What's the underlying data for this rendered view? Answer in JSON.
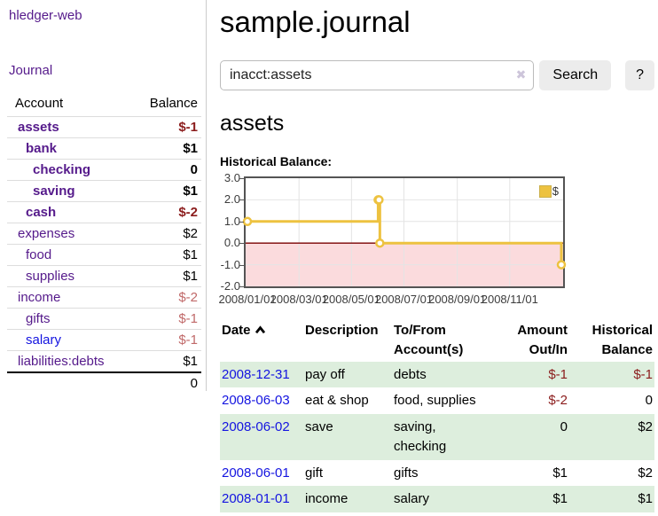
{
  "theme": {
    "link_purple": "#551a8b",
    "link_blue": "#1414e0",
    "negative_strong": "#8b1c1c",
    "negative_muted": "#c06969",
    "row_green": "#ddeedd",
    "chart_line": "#edc240"
  },
  "app": {
    "brand": "hledger-web",
    "nav_journal": "Journal"
  },
  "sidebar": {
    "header": {
      "account": "Account",
      "balance": "Balance"
    },
    "accounts": [
      {
        "name": "assets",
        "depth": 1,
        "balance": "$-1",
        "negative": true,
        "bold": true,
        "unvisited": false
      },
      {
        "name": "bank",
        "depth": 2,
        "balance": "$1",
        "negative": false,
        "bold": true,
        "unvisited": false
      },
      {
        "name": "checking",
        "depth": 3,
        "balance": "0",
        "negative": false,
        "bold": true,
        "unvisited": false
      },
      {
        "name": "saving",
        "depth": 3,
        "balance": "$1",
        "negative": false,
        "bold": true,
        "unvisited": false
      },
      {
        "name": "cash",
        "depth": 2,
        "balance": "$-2",
        "negative": true,
        "bold": true,
        "unvisited": false
      },
      {
        "name": "expenses",
        "depth": 1,
        "balance": "$2",
        "negative": false,
        "bold": false,
        "unvisited": false
      },
      {
        "name": "food",
        "depth": 2,
        "balance": "$1",
        "negative": false,
        "bold": false,
        "unvisited": false
      },
      {
        "name": "supplies",
        "depth": 2,
        "balance": "$1",
        "negative": false,
        "bold": false,
        "unvisited": false
      },
      {
        "name": "income",
        "depth": 1,
        "balance": "$-2",
        "negative": true,
        "bold": false,
        "unvisited": false
      },
      {
        "name": "gifts",
        "depth": 2,
        "balance": "$-1",
        "negative": true,
        "bold": false,
        "unvisited": false
      },
      {
        "name": "salary",
        "depth": 2,
        "balance": "$-1",
        "negative": true,
        "bold": false,
        "unvisited": true
      },
      {
        "name": "liabilities:debts",
        "depth": 1,
        "balance": "$1",
        "negative": false,
        "bold": false,
        "unvisited": false
      }
    ],
    "total": "0"
  },
  "header": {
    "title": "sample.journal"
  },
  "search": {
    "value": "inacct:assets",
    "clear_icon": "✖",
    "button": "Search",
    "help_button": "?"
  },
  "account_page": {
    "title": "assets",
    "chart_label": "Historical Balance:"
  },
  "chart_data": {
    "type": "line",
    "style": "step",
    "title": "Historical Balance",
    "legend": "$",
    "legend_position": "top-right",
    "series": [
      {
        "name": "$",
        "color": "#edc240",
        "points": [
          [
            "2008-01-01",
            1
          ],
          [
            "2008-06-01",
            2
          ],
          [
            "2008-06-02",
            2
          ],
          [
            "2008-06-03",
            0
          ],
          [
            "2008-12-31",
            -1
          ]
        ]
      }
    ],
    "x_range": [
      "2008-01-01",
      "2008-12-31"
    ],
    "x_ticks": [
      "2008/01/01",
      "2008/03/01",
      "2008/05/01",
      "2008/07/01",
      "2008/09/01",
      "2008/11/01"
    ],
    "y_ticks": [
      "3.0",
      "2.0",
      "1.0",
      "0.0",
      "-1.0",
      "-2.0"
    ],
    "ylim": [
      -2,
      3
    ],
    "grid": true,
    "negative_region_color": "#fbdbdd",
    "zero_line_color": "#7a0000",
    "gridline_color": "#e4e4e4"
  },
  "register": {
    "columns": [
      {
        "label": "Date",
        "sorted": "asc"
      },
      {
        "label": "Description"
      },
      {
        "label": "To/From Account(s)"
      },
      {
        "label": "Amount Out/In"
      },
      {
        "label": "Historical Balance"
      }
    ],
    "rows": [
      {
        "date": "2008-12-31",
        "description": "pay off",
        "accounts": "debts",
        "amount": "$-1",
        "balance": "$-1",
        "amount_negative": true,
        "balance_negative": true,
        "highlighted": true
      },
      {
        "date": "2008-06-03",
        "description": "eat & shop",
        "accounts": "food, supplies",
        "amount": "$-2",
        "balance": "0",
        "amount_negative": true,
        "balance_negative": false,
        "highlighted": false
      },
      {
        "date": "2008-06-02",
        "description": "save",
        "accounts": "saving, checking",
        "amount": "0",
        "balance": "$2",
        "amount_negative": false,
        "balance_negative": false,
        "highlighted": true
      },
      {
        "date": "2008-06-01",
        "description": "gift",
        "accounts": "gifts",
        "amount": "$1",
        "balance": "$2",
        "amount_negative": false,
        "balance_negative": false,
        "highlighted": false
      },
      {
        "date": "2008-01-01",
        "description": "income",
        "accounts": "salary",
        "amount": "$1",
        "balance": "$1",
        "amount_negative": false,
        "balance_negative": false,
        "highlighted": true
      }
    ]
  }
}
